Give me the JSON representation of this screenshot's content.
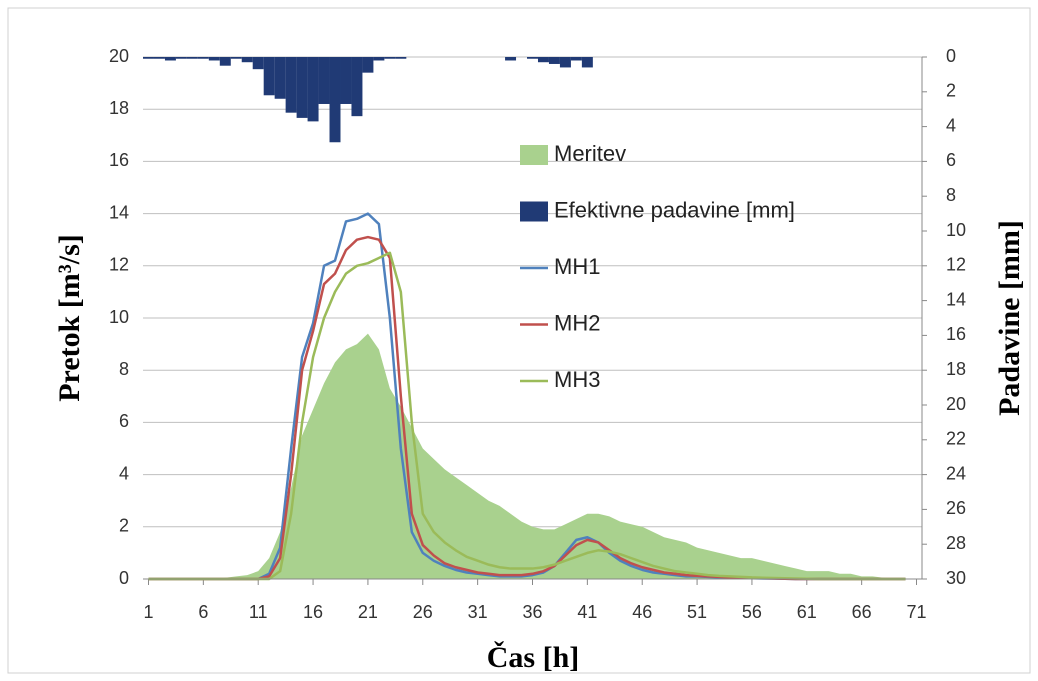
{
  "chart_data": {
    "type": "combo",
    "xlabel": "Čas [h]",
    "ylabel": "Pretok [m³/s]",
    "y2label": "Padavine [mm]",
    "x": [
      1,
      2,
      3,
      4,
      5,
      6,
      7,
      8,
      9,
      10,
      11,
      12,
      13,
      14,
      15,
      16,
      17,
      18,
      19,
      20,
      21,
      22,
      23,
      24,
      25,
      26,
      27,
      28,
      29,
      30,
      31,
      32,
      33,
      34,
      35,
      36,
      37,
      38,
      39,
      40,
      41,
      42,
      43,
      44,
      45,
      46,
      47,
      48,
      49,
      50,
      51,
      52,
      53,
      54,
      55,
      56,
      57,
      58,
      59,
      60,
      61,
      62,
      63,
      64,
      65,
      66,
      67,
      68,
      69,
      70
    ],
    "xlim": [
      0.5,
      71.5
    ],
    "xticks": [
      1,
      6,
      11,
      16,
      21,
      26,
      31,
      36,
      41,
      46,
      51,
      56,
      61,
      66,
      71
    ],
    "ylim": [
      0,
      20
    ],
    "yticks": [
      0,
      2,
      4,
      6,
      8,
      10,
      12,
      14,
      16,
      18,
      20
    ],
    "y2lim": [
      30,
      0
    ],
    "y2ticks": [
      0,
      2,
      4,
      6,
      8,
      10,
      12,
      14,
      16,
      18,
      20,
      22,
      24,
      26,
      28,
      30
    ],
    "grid": true,
    "series": [
      {
        "name": "Meritev",
        "type": "area",
        "color": "#a9d18e",
        "values": [
          0,
          0,
          0,
          0,
          0,
          0,
          0,
          0.05,
          0.1,
          0.15,
          0.3,
          0.8,
          1.8,
          3.5,
          5.5,
          6.5,
          7.5,
          8.3,
          8.8,
          9.0,
          9.4,
          8.8,
          7.3,
          6.6,
          5.8,
          5.0,
          4.6,
          4.2,
          3.9,
          3.6,
          3.3,
          3.0,
          2.8,
          2.5,
          2.2,
          2.0,
          1.9,
          1.9,
          2.1,
          2.3,
          2.5,
          2.5,
          2.4,
          2.2,
          2.1,
          2.0,
          1.8,
          1.6,
          1.5,
          1.4,
          1.2,
          1.1,
          1.0,
          0.9,
          0.8,
          0.8,
          0.7,
          0.6,
          0.5,
          0.4,
          0.3,
          0.3,
          0.3,
          0.2,
          0.2,
          0.1,
          0.1,
          0.05,
          0.02,
          0
        ]
      },
      {
        "name": "Efektivne padavine [mm]",
        "type": "bar",
        "axis": "y2",
        "color": "#203a75",
        "values": [
          0.1,
          0.1,
          0.2,
          0.1,
          0.1,
          0.1,
          0.2,
          0.5,
          0.1,
          0.3,
          0.7,
          2.2,
          2.4,
          3.2,
          3.5,
          3.7,
          2.7,
          4.9,
          2.7,
          3.4,
          0.9,
          0.2,
          0.1,
          0.1,
          0,
          0,
          0,
          0,
          0,
          0,
          0,
          0,
          0,
          0.2,
          0,
          0.1,
          0.3,
          0.4,
          0.6,
          0.2,
          0.6,
          0,
          0,
          0,
          0,
          0,
          0,
          0,
          0,
          0,
          0,
          0,
          0,
          0,
          0,
          0,
          0,
          0,
          0,
          0,
          0,
          0,
          0,
          0,
          0,
          0,
          0,
          0,
          0,
          0
        ]
      },
      {
        "name": "MH1",
        "type": "line",
        "color": "#4f81bd",
        "values": [
          0,
          0,
          0,
          0,
          0,
          0,
          0,
          0,
          0,
          0,
          0,
          0.2,
          1.2,
          5,
          8.5,
          9.8,
          12,
          12.2,
          13.7,
          13.8,
          14.0,
          13.6,
          10,
          5,
          1.8,
          1.0,
          0.7,
          0.5,
          0.35,
          0.25,
          0.2,
          0.15,
          0.1,
          0.1,
          0.1,
          0.15,
          0.25,
          0.5,
          1.0,
          1.5,
          1.6,
          1.4,
          1.0,
          0.7,
          0.5,
          0.35,
          0.25,
          0.2,
          0.15,
          0.1,
          0.1,
          0.08,
          0.06,
          0.05,
          0.04,
          0.03,
          0.02,
          0.02,
          0.01,
          0,
          0,
          0,
          0,
          0,
          0,
          0,
          0,
          0,
          0,
          0
        ]
      },
      {
        "name": "MH2",
        "type": "line",
        "color": "#c0504d",
        "values": [
          0,
          0,
          0,
          0,
          0,
          0,
          0,
          0,
          0,
          0,
          0,
          0.1,
          0.8,
          4,
          8,
          9.5,
          11.3,
          11.7,
          12.6,
          13.0,
          13.1,
          13.0,
          12.3,
          7,
          2.5,
          1.3,
          0.9,
          0.6,
          0.45,
          0.35,
          0.25,
          0.2,
          0.15,
          0.15,
          0.15,
          0.2,
          0.3,
          0.5,
          0.9,
          1.3,
          1.5,
          1.4,
          1.1,
          0.8,
          0.6,
          0.45,
          0.35,
          0.25,
          0.2,
          0.15,
          0.12,
          0.1,
          0.08,
          0.06,
          0.05,
          0.04,
          0.03,
          0.02,
          0.01,
          0,
          0,
          0,
          0,
          0,
          0,
          0,
          0,
          0,
          0,
          0
        ]
      },
      {
        "name": "MH3",
        "type": "line",
        "color": "#9bbb59",
        "values": [
          0,
          0,
          0,
          0,
          0,
          0,
          0,
          0,
          0,
          0,
          0,
          0,
          0.3,
          2.5,
          6,
          8.5,
          10,
          11,
          11.7,
          12.0,
          12.1,
          12.3,
          12.5,
          11,
          6,
          2.5,
          1.8,
          1.4,
          1.1,
          0.85,
          0.7,
          0.55,
          0.45,
          0.4,
          0.4,
          0.4,
          0.45,
          0.55,
          0.7,
          0.85,
          1.0,
          1.1,
          1.05,
          0.95,
          0.8,
          0.65,
          0.5,
          0.4,
          0.3,
          0.25,
          0.2,
          0.15,
          0.12,
          0.1,
          0.08,
          0.06,
          0.05,
          0.04,
          0.03,
          0.02,
          0.01,
          0,
          0,
          0,
          0,
          0,
          0,
          0,
          0,
          0
        ]
      }
    ]
  }
}
